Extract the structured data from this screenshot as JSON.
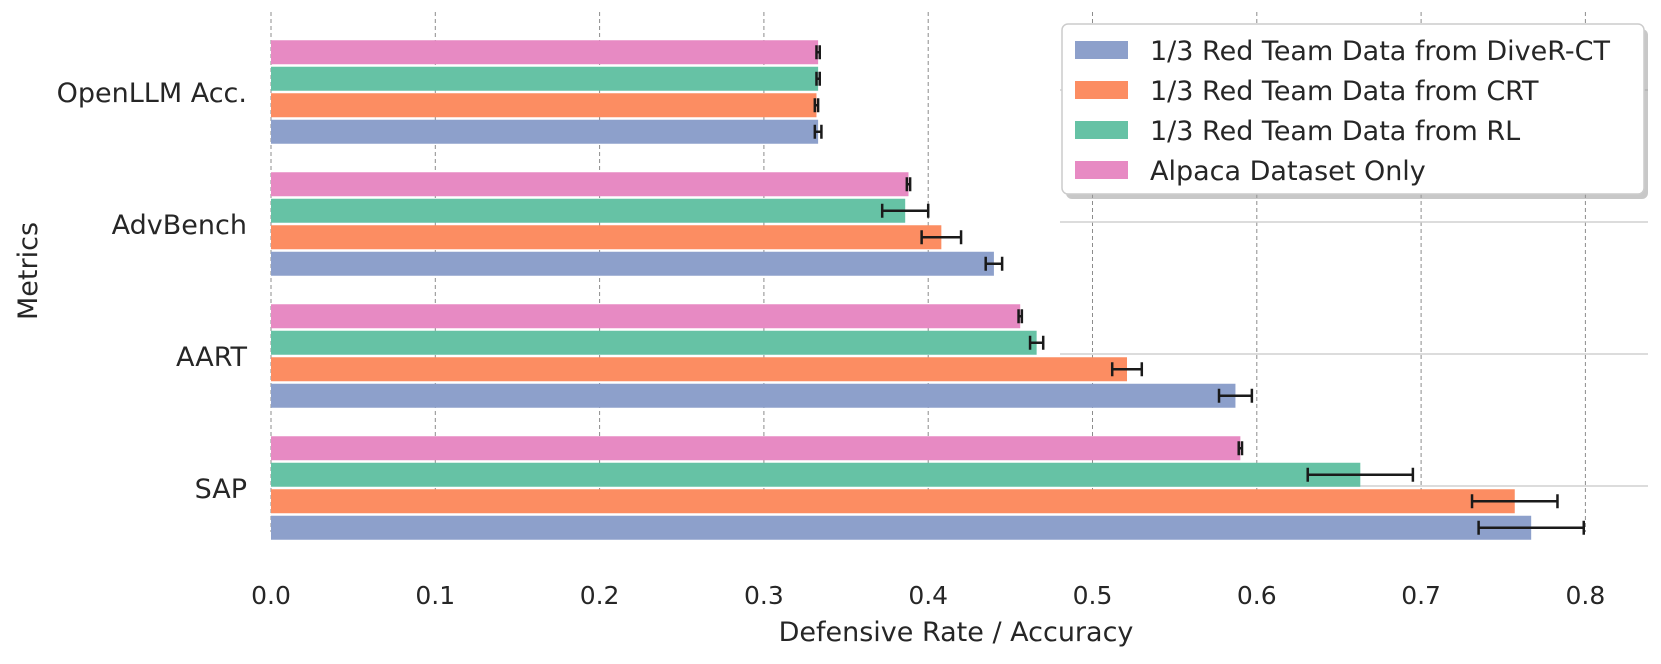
{
  "chart_data": {
    "type": "bar",
    "orientation": "horizontal",
    "categories": [
      "SAP",
      "AART",
      "AdvBench",
      "OpenLLM Acc."
    ],
    "series": [
      {
        "name": "1/3 Red Team Data from DiveR-CT",
        "color": "#8da0cb",
        "values": [
          0.767,
          0.587,
          0.44,
          0.333
        ],
        "errors": [
          0.032,
          0.01,
          0.005,
          0.002
        ]
      },
      {
        "name": "1/3 Red Team Data from CRT",
        "color": "#fc8d62",
        "values": [
          0.757,
          0.521,
          0.408,
          0.332
        ],
        "errors": [
          0.026,
          0.009,
          0.012,
          0.001
        ]
      },
      {
        "name": "1/3 Red Team Data from RL",
        "color": "#66c2a5",
        "values": [
          0.663,
          0.466,
          0.386,
          0.333
        ],
        "errors": [
          0.032,
          0.004,
          0.014,
          0.001
        ]
      },
      {
        "name": "Alpaca Dataset Only",
        "color": "#e78ac3",
        "values": [
          0.59,
          0.456,
          0.388,
          0.333
        ],
        "errors": [
          0.001,
          0.001,
          0.001,
          0.001
        ]
      }
    ],
    "xlabel": "Defensive Rate / Accuracy",
    "ylabel": "Metrics",
    "xlim": [
      0.0,
      0.84
    ],
    "xticks": [
      "0.0",
      "0.1",
      "0.2",
      "0.3",
      "0.4",
      "0.5",
      "0.6",
      "0.7",
      "0.8"
    ],
    "grid": "x dashed",
    "legend_position": "upper-right",
    "legend_order": [
      0,
      1,
      2,
      3
    ]
  }
}
